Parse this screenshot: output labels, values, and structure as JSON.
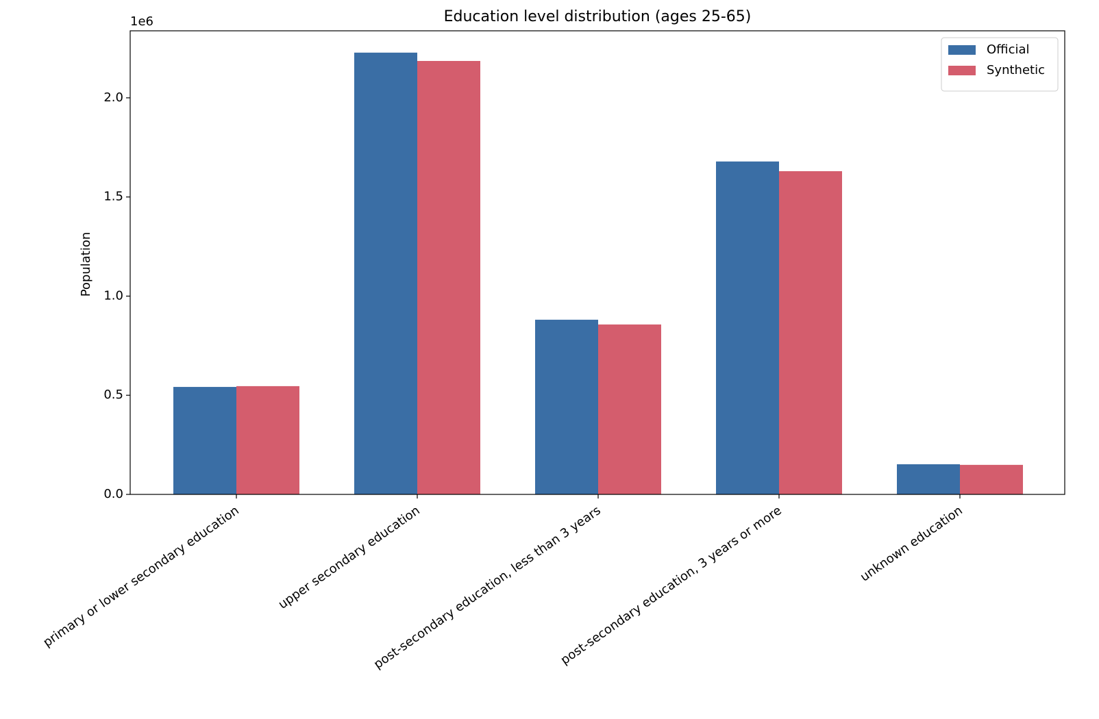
{
  "chart_data": {
    "type": "bar",
    "title": "Education level distribution (ages 25-65)",
    "ylabel": "Population",
    "y_offset_label": "1e6",
    "categories": [
      "primary or lower secondary education",
      "upper secondary education",
      "post-secondary education, less than 3 years",
      "post-secondary education, 3 years or more",
      "unknown education"
    ],
    "series": [
      {
        "name": "Official",
        "color": "#3a6ea5",
        "values": [
          542000,
          2228000,
          881000,
          1679000,
          152000
        ]
      },
      {
        "name": "Synthetic",
        "color": "#d45d6d",
        "values": [
          546000,
          2186000,
          857000,
          1630000,
          149000
        ]
      }
    ],
    "ylim": [
      0,
      2338000
    ],
    "yticks": [
      {
        "value": 0,
        "label": "0.0"
      },
      {
        "value": 500000,
        "label": "0.5"
      },
      {
        "value": 1000000,
        "label": "1.0"
      },
      {
        "value": 1500000,
        "label": "1.5"
      },
      {
        "value": 2000000,
        "label": "2.0"
      }
    ],
    "grid": false,
    "legend": "upper right"
  }
}
